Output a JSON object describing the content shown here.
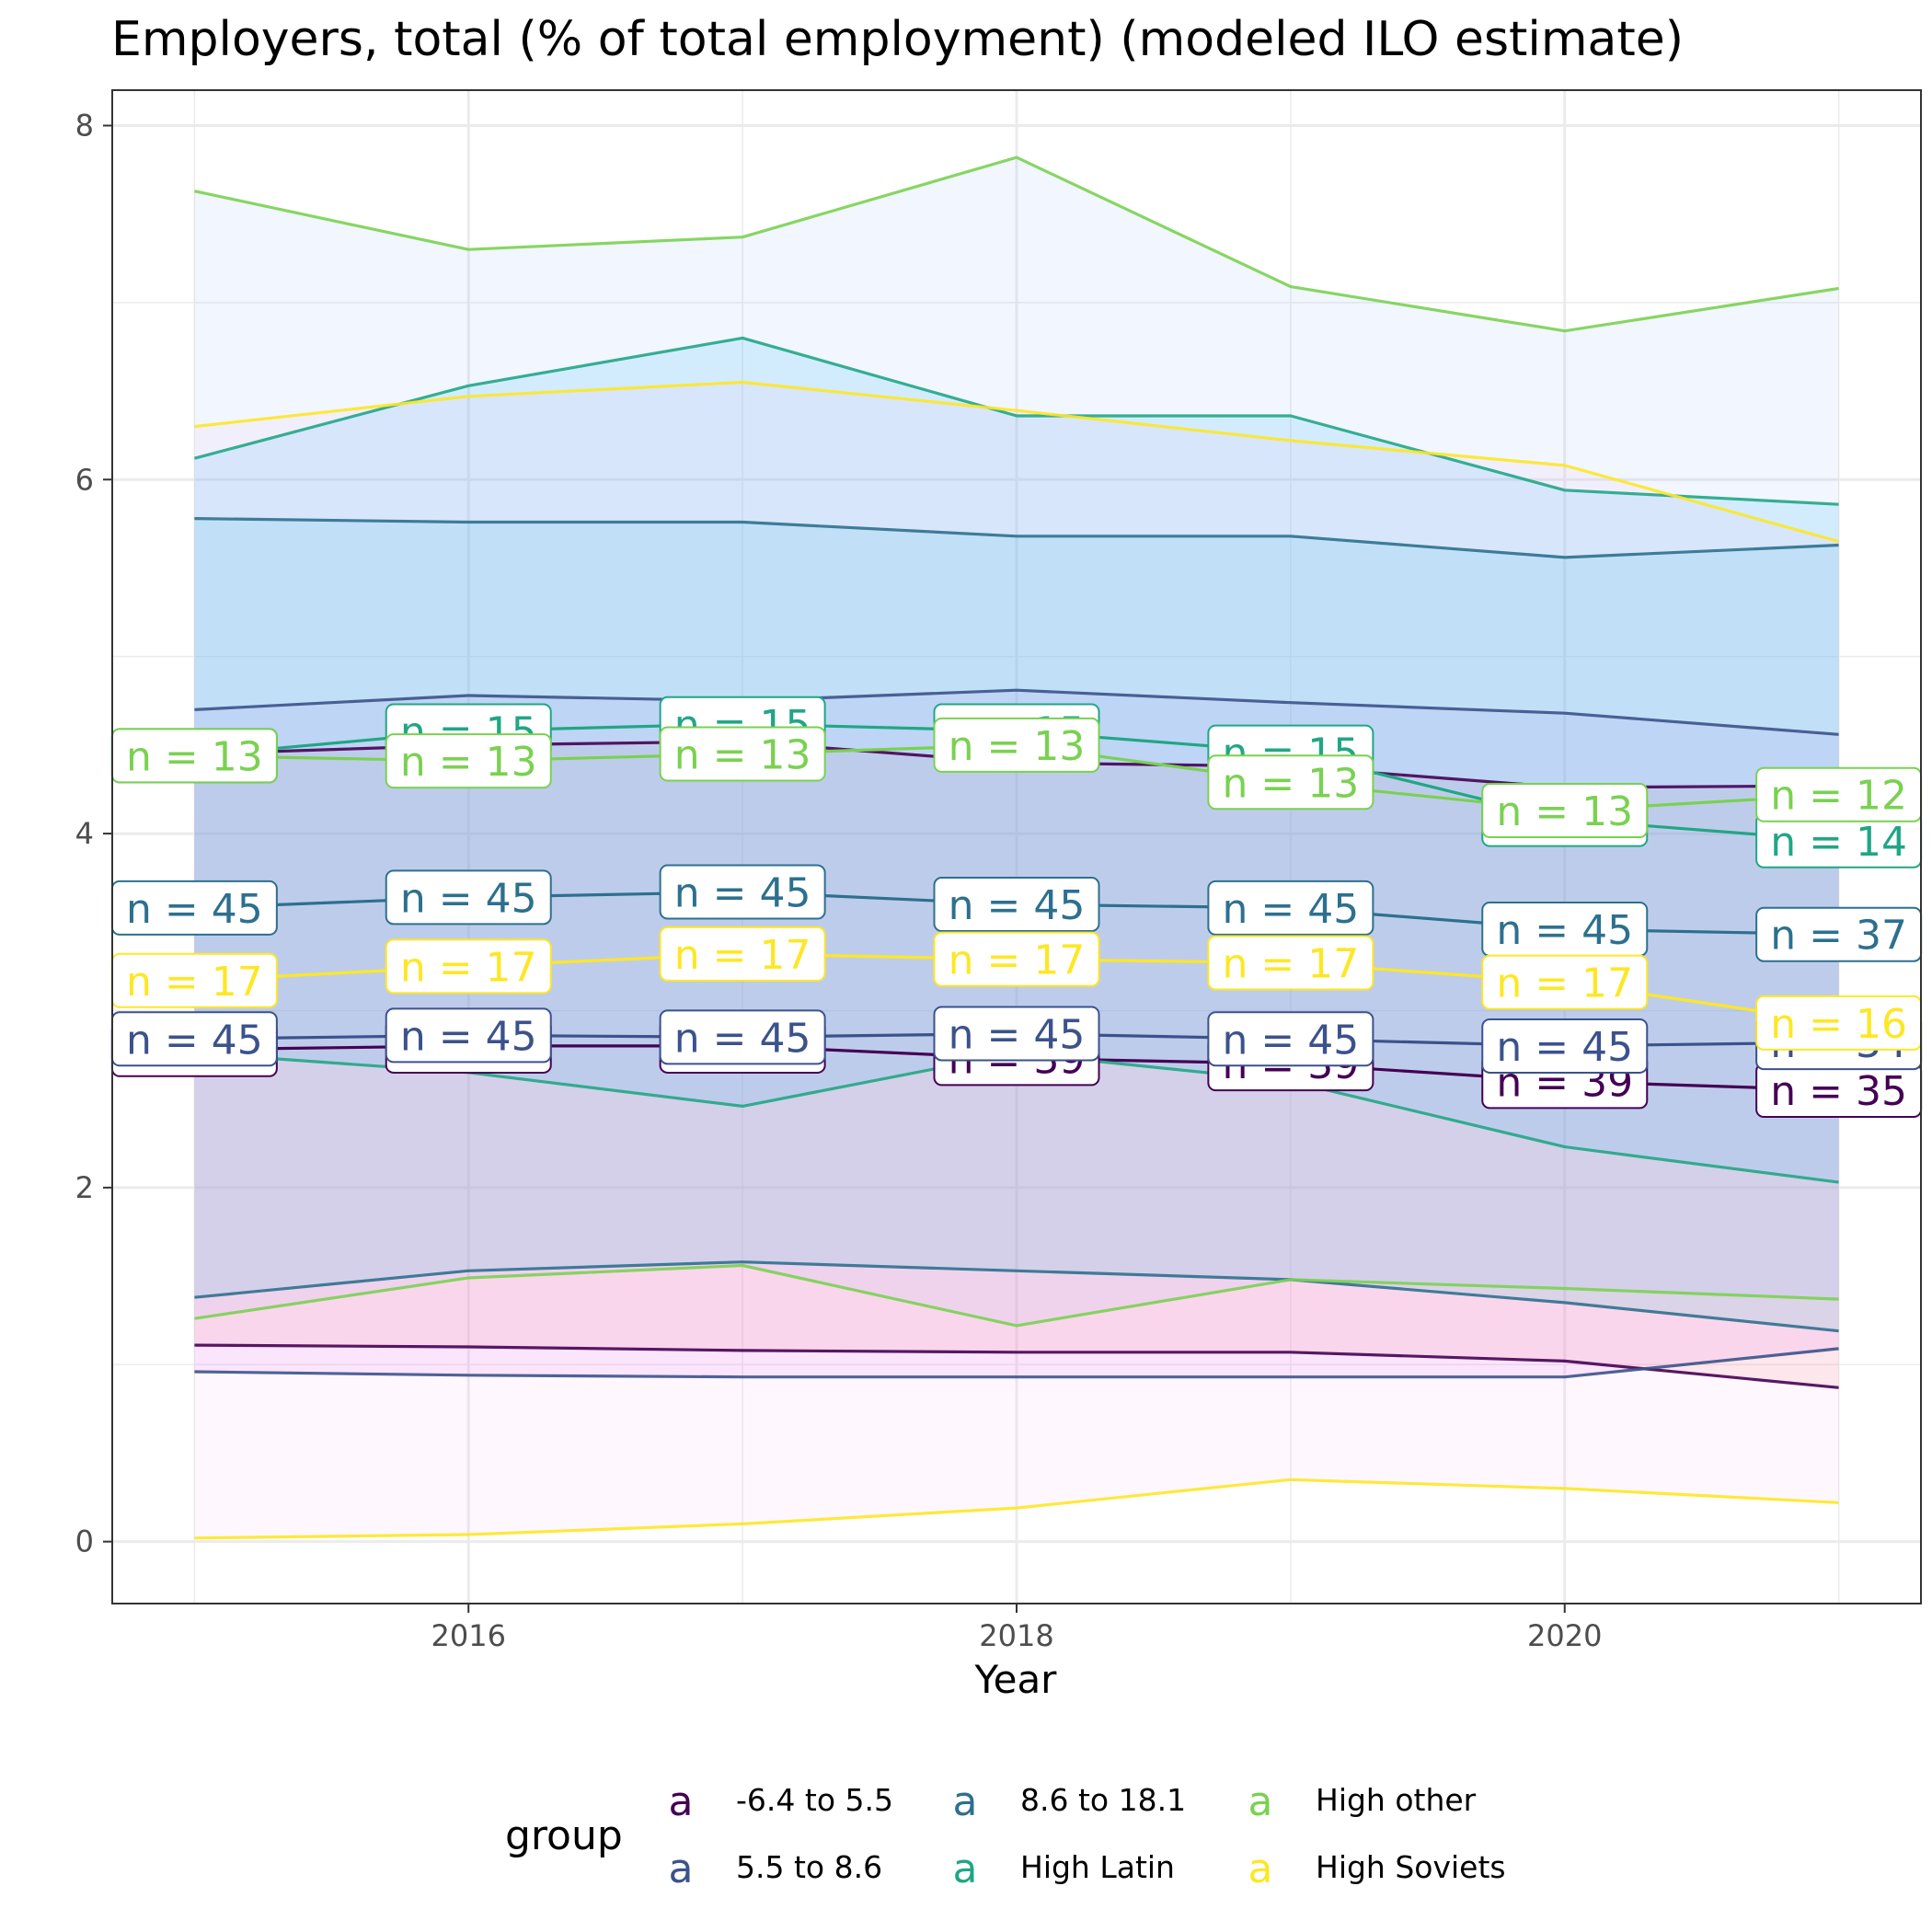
{
  "chart_data": {
    "type": "line",
    "title": "Employers, total (% of total employment) (modeled ILO estimate)",
    "xlabel": "Year",
    "ylabel": "",
    "x": [
      2015,
      2016,
      2017,
      2018,
      2019,
      2020,
      2021
    ],
    "xlim": [
      2014.7,
      2021.3
    ],
    "ylim": [
      -0.35,
      8.2
    ],
    "x_ticks": [
      2016,
      2018,
      2020
    ],
    "y_ticks": [
      0,
      2,
      4,
      6,
      8
    ],
    "grid": true,
    "legend": {
      "title": "group",
      "position": "bottom",
      "key_glyph": "a",
      "entries": [
        "-6.4 to 5.5",
        "5.5 to 8.6",
        "8.6 to 18.1",
        "High Latin",
        "High other",
        "High Soviets"
      ]
    },
    "series": [
      {
        "name": "-6.4 to 5.5",
        "color": "#440154",
        "band_fill": "#f8766d",
        "mean": [
          2.78,
          2.8,
          2.8,
          2.73,
          2.7,
          2.6,
          2.55
        ],
        "low": [
          1.11,
          1.1,
          1.08,
          1.07,
          1.07,
          1.02,
          0.87
        ],
        "high": [
          4.45,
          4.5,
          4.52,
          4.4,
          4.38,
          4.26,
          4.27
        ],
        "n_labels": [
          "n = 45",
          "n = 45",
          "n = 45",
          "n = 39",
          "n = 39",
          "n = 39",
          "n = 35"
        ]
      },
      {
        "name": "5.5 to 8.6",
        "color": "#3b528b",
        "band_fill": "#e76bf3",
        "mean": [
          2.84,
          2.86,
          2.85,
          2.87,
          2.84,
          2.8,
          2.82
        ],
        "low": [
          0.96,
          0.94,
          0.93,
          0.93,
          0.93,
          0.93,
          1.09
        ],
        "high": [
          4.7,
          4.78,
          4.75,
          4.81,
          4.74,
          4.68,
          4.56
        ],
        "n_labels": [
          "n = 45",
          "n = 45",
          "n = 45",
          "n = 45",
          "n = 45",
          "n = 45",
          "n = 34"
        ]
      },
      {
        "name": "8.6 to 18.1",
        "color": "#21908c",
        "line_color": "#2d708e",
        "band_fill": "#00bfc4",
        "mean": [
          3.58,
          3.64,
          3.67,
          3.6,
          3.58,
          3.46,
          3.43
        ],
        "low": [
          1.38,
          1.53,
          1.58,
          1.53,
          1.48,
          1.35,
          1.19
        ],
        "high": [
          5.78,
          5.76,
          5.76,
          5.68,
          5.68,
          5.56,
          5.63
        ],
        "n_labels": [
          "n = 45",
          "n = 45",
          "n = 45",
          "n = 45",
          "n = 45",
          "n = 45",
          "n = 37"
        ]
      },
      {
        "name": "High Latin",
        "color": "#21a685",
        "band_fill": "#00b0f6",
        "mean": [
          4.44,
          4.58,
          4.62,
          4.58,
          4.46,
          4.08,
          3.96
        ],
        "low": [
          2.76,
          2.65,
          2.46,
          2.76,
          2.6,
          2.23,
          2.03
        ],
        "high": [
          6.12,
          6.53,
          6.8,
          6.36,
          6.36,
          5.94,
          5.86
        ],
        "n_labels": [
          "n = 13",
          "n = 15",
          "n = 15",
          "n = 15",
          "n = 15",
          "n = 13",
          "n = 14"
        ]
      },
      {
        "name": "High other",
        "color": "#7ad151",
        "band_fill": "#a3c1f6",
        "mean": [
          4.44,
          4.41,
          4.45,
          4.5,
          4.29,
          4.13,
          4.22
        ],
        "low": [
          1.26,
          1.49,
          1.56,
          1.22,
          1.48,
          1.43,
          1.37
        ],
        "high": [
          7.63,
          7.3,
          7.37,
          7.82,
          7.09,
          6.84,
          7.08
        ],
        "n_labels": [
          "n = 13",
          "n = 13",
          "n = 13",
          "n = 13",
          "n = 13",
          "n = 13",
          "n = 12"
        ]
      },
      {
        "name": "High Soviets",
        "color": "#fde725",
        "band_fill": "#f9c6f8",
        "mean": [
          3.17,
          3.25,
          3.32,
          3.29,
          3.27,
          3.16,
          2.93
        ],
        "low": [
          0.02,
          0.04,
          0.1,
          0.19,
          0.35,
          0.3,
          0.22
        ],
        "high": [
          6.3,
          6.47,
          6.55,
          6.39,
          6.22,
          6.08,
          5.65
        ],
        "n_labels": [
          "n = 17",
          "n = 17",
          "n = 17",
          "n = 17",
          "n = 17",
          "n = 17",
          "n = 16"
        ]
      }
    ]
  }
}
